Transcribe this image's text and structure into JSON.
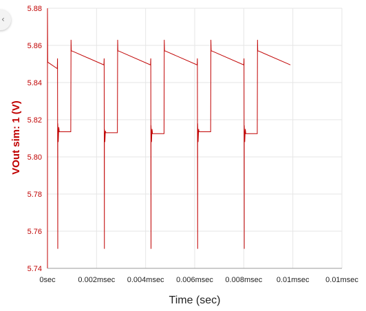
{
  "chart_data": {
    "type": "line",
    "title": "",
    "xlabel": "Time (sec)",
    "ylabel": "VOut sim: 1 (V)",
    "xlim": [
      0,
      0.012
    ],
    "ylim": [
      5.74,
      5.88
    ],
    "grid": true,
    "legend": "none",
    "y_ticks": [
      "5.74",
      "5.76",
      "5.78",
      "5.80",
      "5.82",
      "5.84",
      "5.86",
      "5.88"
    ],
    "y_tick_values": [
      5.74,
      5.76,
      5.78,
      5.8,
      5.82,
      5.84,
      5.86,
      5.88
    ],
    "x_ticks": [
      "0sec",
      "0.002msec",
      "0.004msec",
      "0.006msec",
      "0.008msec",
      "0.01msec",
      "0.01msec"
    ],
    "x_tick_values": [
      0,
      0.002,
      0.004,
      0.006,
      0.008,
      0.01,
      0.012
    ],
    "series": [
      {
        "color": "#c00000",
        "x": [
          0,
          1e-05,
          0.0004,
          0.00041,
          0.00042,
          0.00042,
          0.00044,
          0.00046,
          0.00047,
          0.00048,
          0.00095,
          0.00096,
          0.00097,
          0.001,
          0.0023,
          0.00231,
          0.00232,
          0.00232,
          0.00234,
          0.00236,
          0.00237,
          0.00238,
          0.00285,
          0.00286,
          0.00287,
          0.0029,
          0.0042,
          0.00421,
          0.00422,
          0.00422,
          0.00424,
          0.00426,
          0.00427,
          0.00428,
          0.00475,
          0.00476,
          0.00477,
          0.0048,
          0.0061,
          0.00611,
          0.00612,
          0.00612,
          0.00614,
          0.00616,
          0.00617,
          0.00618,
          0.00665,
          0.00666,
          0.00667,
          0.0067,
          0.008,
          0.00801,
          0.00802,
          0.00802,
          0.00804,
          0.00806,
          0.00807,
          0.00808,
          0.00855,
          0.00856,
          0.00857,
          0.0086,
          0.0099
        ],
        "y": [
          5.88,
          5.851,
          5.8475,
          5.853,
          5.7505,
          5.818,
          5.808,
          5.816,
          5.815,
          5.8135,
          5.8135,
          5.863,
          5.857,
          5.857,
          5.8495,
          5.853,
          5.7505,
          5.815,
          5.808,
          5.814,
          5.8135,
          5.813,
          5.813,
          5.863,
          5.857,
          5.857,
          5.8495,
          5.853,
          5.7505,
          5.817,
          5.808,
          5.815,
          5.814,
          5.8125,
          5.8125,
          5.863,
          5.857,
          5.857,
          5.8495,
          5.853,
          5.7505,
          5.818,
          5.808,
          5.815,
          5.814,
          5.8135,
          5.8135,
          5.863,
          5.857,
          5.857,
          5.8495,
          5.853,
          5.7505,
          5.817,
          5.808,
          5.815,
          5.814,
          5.8125,
          5.8125,
          5.863,
          5.857,
          5.857,
          5.8495
        ]
      }
    ]
  }
}
